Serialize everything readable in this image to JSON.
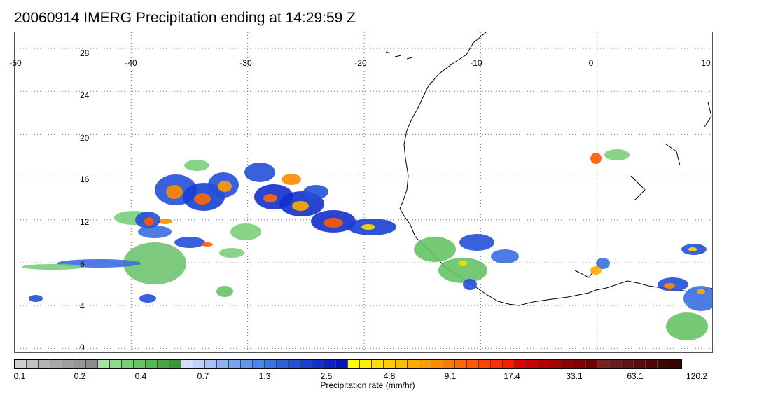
{
  "title": "20060914 IMERG Precipitation ending at 14:29:59 Z",
  "map": {
    "lon_ticks": [
      "-50",
      "-40",
      "-30",
      "-20",
      "-10",
      "0",
      "10"
    ],
    "lat_ticks": [
      "28",
      "24",
      "20",
      "16",
      "12",
      "8",
      "4",
      "0"
    ],
    "lon_range": [
      -50,
      10
    ],
    "lat_range": [
      -0.5,
      29.5
    ],
    "grid": "dotted"
  },
  "colorbar": {
    "label": "Precipitation rate (mm/hr)",
    "tick_labels": [
      "0.1",
      "0.2",
      "0.4",
      "0.7",
      "1.3",
      "2.5",
      "4.8",
      "9.1",
      "17.4",
      "33.1",
      "63.1",
      "120.2"
    ],
    "colors": [
      "#cfcfcf",
      "#c0c0c0",
      "#b3b3b3",
      "#a8a8a8",
      "#9e9e9e",
      "#959595",
      "#8c8c8c",
      "#a6e3a0",
      "#8fd98a",
      "#79cf77",
      "#66c366",
      "#55b556",
      "#46a548",
      "#3a963d",
      "#d8dcfc",
      "#c2d0f9",
      "#a8c2f6",
      "#8fb3f2",
      "#78a4ee",
      "#6394ea",
      "#5083e6",
      "#3f72e2",
      "#3060de",
      "#2550d8",
      "#1a3fd2",
      "#1230cc",
      "#0b22c4",
      "#0615b8",
      "#ffff00",
      "#ffee00",
      "#ffdd00",
      "#ffcc00",
      "#ffbb00",
      "#ffaa00",
      "#ff9a00",
      "#ff8a00",
      "#ff7a00",
      "#ff6a00",
      "#ff5a00",
      "#ff4400",
      "#ff2f00",
      "#ff1a00",
      "#e00000",
      "#cc0000",
      "#b80000",
      "#a60000",
      "#940000",
      "#820000",
      "#700000",
      "#7a2020",
      "#6e1a1a",
      "#621414",
      "#560f0f",
      "#4a0a0a",
      "#400707",
      "#360404"
    ]
  }
}
